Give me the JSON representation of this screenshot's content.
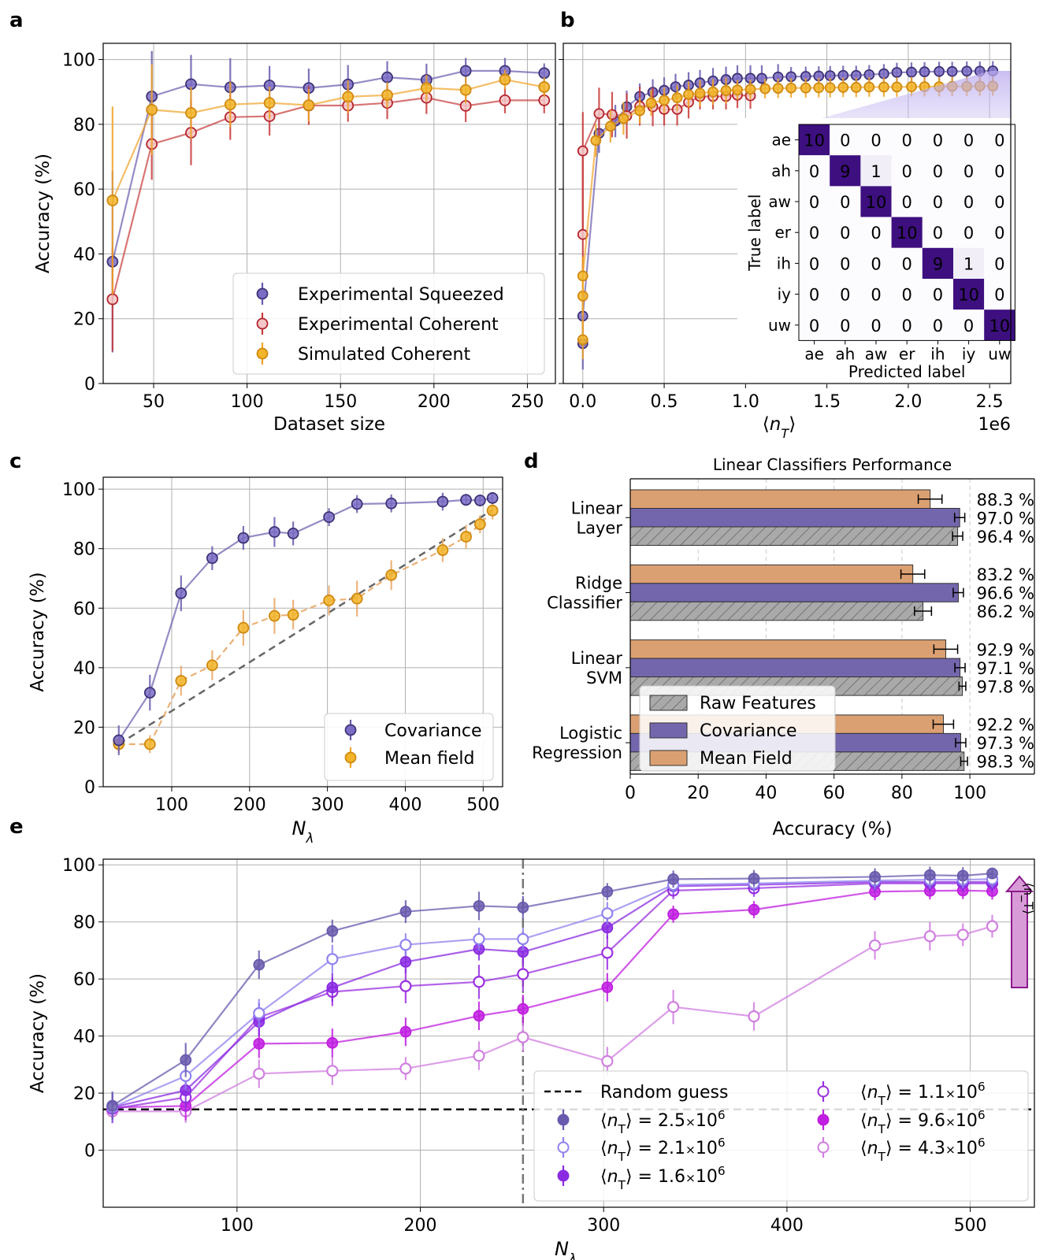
{
  "chart_data": [
    {
      "panel": "a",
      "type": "line",
      "title": "",
      "xlabel": "Dataset size",
      "ylabel": "Accuracy (%)",
      "xlim": [
        23,
        265
      ],
      "ylim": [
        0,
        105
      ],
      "xticks": [
        "50",
        "100",
        "150",
        "200",
        "250"
      ],
      "xtick_values": [
        50,
        100,
        150,
        200,
        250
      ],
      "yticks": [
        "0",
        "20",
        "40",
        "60",
        "80",
        "100"
      ],
      "ytick_values": [
        0,
        20,
        40,
        60,
        80,
        100
      ],
      "legend": [
        "Experimental Squeezed",
        "Experimental Coherent",
        "Simulated Coherent"
      ],
      "legend_position": "lower-right",
      "series": [
        {
          "name": "Experimental Squeezed",
          "color": "#6a5aad",
          "x": [
            28,
            49,
            70,
            91,
            112,
            133,
            154,
            175,
            196,
            217,
            238,
            259
          ],
          "values": [
            37.6,
            88.6,
            92.4,
            91.4,
            92.0,
            91.2,
            92.3,
            94.5,
            93.7,
            96.5,
            96.5,
            95.8
          ],
          "err": [
            28,
            14,
            9,
            9,
            6,
            6,
            6,
            5,
            5,
            4,
            4,
            3
          ]
        },
        {
          "name": "Experimental Coherent",
          "color": "#c83a3a",
          "x": [
            28,
            49,
            70,
            91,
            112,
            133,
            154,
            175,
            196,
            217,
            238,
            259
          ],
          "values": [
            26.0,
            73.9,
            77.4,
            82.2,
            82.5,
            85.8,
            85.8,
            86.6,
            88.2,
            85.7,
            87.4,
            87.4
          ],
          "err": [
            16,
            11,
            10,
            7,
            6,
            6,
            5,
            5,
            5,
            5,
            4,
            4
          ]
        },
        {
          "name": "Simulated Coherent",
          "color": "#f0a326",
          "x": [
            28,
            49,
            70,
            91,
            112,
            133,
            154,
            175,
            196,
            217,
            238,
            259
          ],
          "values": [
            56.5,
            84.5,
            83.5,
            86.1,
            86.6,
            85.9,
            88.5,
            89.0,
            91.2,
            90.6,
            93.8,
            91.5
          ],
          "err": [
            29,
            14,
            8,
            7,
            5,
            5,
            5,
            4,
            4,
            4,
            3,
            3
          ]
        }
      ]
    },
    {
      "panel": "b",
      "type": "line",
      "xlabel": "⟨n_T⟩",
      "xscale_label": "1e6",
      "xlim": [
        -0.12,
        2.63
      ],
      "ylim": [
        0,
        105
      ],
      "xticks": [
        "0.0",
        "0.5",
        "1.0",
        "1.5",
        "2.0",
        "2.5"
      ],
      "xtick_values": [
        0,
        0.5,
        1.0,
        1.5,
        2.0,
        2.5
      ],
      "series": [
        {
          "name": "Experimental Squeezed",
          "color": "#6a5aad",
          "x": [
            0.0,
            0.0,
            0.1,
            0.2,
            0.27,
            0.35,
            0.43,
            0.5,
            0.57,
            0.65,
            0.72,
            0.8,
            0.88,
            0.95,
            1.03,
            1.1,
            1.2,
            1.28,
            1.37,
            1.45,
            1.52,
            1.6,
            1.68,
            1.76,
            1.85,
            1.93,
            2.02,
            2.1,
            2.19,
            2.27,
            2.36,
            2.44,
            2.52
          ],
          "values": [
            12.3,
            20.8,
            77.2,
            81.0,
            85.4,
            88.6,
            89.9,
            90.5,
            91.6,
            92.1,
            92.8,
            93.4,
            93.8,
            94.2,
            94.2,
            94.2,
            94.6,
            94.7,
            94.8,
            94.9,
            95.0,
            95.1,
            95.1,
            95.3,
            95.6,
            96.0,
            96.1,
            96.2,
            96.3,
            96.3,
            96.4,
            96.4,
            96.5
          ],
          "err": [
            8,
            8,
            6,
            5,
            5,
            4,
            4,
            4,
            4,
            4,
            4,
            4,
            4,
            4,
            4,
            4,
            4,
            3,
            3,
            3,
            3,
            3,
            3,
            3,
            3,
            3,
            3,
            3,
            3,
            3,
            3,
            3,
            3
          ]
        },
        {
          "name": "Experimental Coherent",
          "color": "#c83a3a",
          "x": [
            0.0,
            0.0,
            0.1,
            0.18,
            0.27,
            0.35,
            0.43,
            0.5,
            0.58,
            0.65,
            0.72,
            0.8,
            0.88,
            0.95,
            1.03
          ],
          "values": [
            46.0,
            71.8,
            83.3,
            83.0,
            82.6,
            85.6,
            85.4,
            84.6,
            84.6,
            86.8,
            88.6,
            88.6,
            88.6,
            89.0,
            88.8
          ],
          "err": [
            14,
            12,
            8,
            7,
            7,
            6,
            6,
            5,
            5,
            5,
            4,
            4,
            4,
            4,
            4
          ]
        },
        {
          "name": "Simulated Coherent",
          "color": "#f0a326",
          "x": [
            0.0,
            0.0,
            0.0,
            0.08,
            0.17,
            0.25,
            0.35,
            0.42,
            0.5,
            0.58,
            0.65,
            0.72,
            0.8,
            0.88,
            0.95,
            1.03,
            1.12,
            1.2,
            1.28,
            1.37,
            1.45,
            1.52,
            1.6,
            1.68,
            1.76,
            1.85,
            1.93,
            2.02,
            2.1,
            2.19,
            2.27,
            2.36,
            2.44,
            2.52
          ],
          "values": [
            13.5,
            27.0,
            33.2,
            75.0,
            79.4,
            81.8,
            84.2,
            86.6,
            87.4,
            88.2,
            89.2,
            89.6,
            90.0,
            90.4,
            90.6,
            90.8,
            91.0,
            91.1,
            91.2,
            91.2,
            91.3,
            91.3,
            91.4,
            91.4,
            91.5,
            91.5,
            91.5,
            91.6,
            91.6,
            91.6,
            91.7,
            91.7,
            91.8,
            91.8
          ],
          "err": [
            6,
            6,
            6,
            5,
            5,
            5,
            4,
            4,
            4,
            4,
            4,
            4,
            4,
            4,
            3,
            3,
            3,
            3,
            3,
            3,
            3,
            3,
            3,
            3,
            3,
            3,
            3,
            3,
            3,
            3,
            3,
            3,
            3,
            3
          ]
        }
      ],
      "inset": {
        "type": "heatmap",
        "xlabel": "Predicted label",
        "ylabel": "True label",
        "labels": [
          "ae",
          "ah",
          "aw",
          "er",
          "ih",
          "iy",
          "uw"
        ],
        "matrix": [
          [
            10,
            0,
            0,
            0,
            0,
            0,
            0
          ],
          [
            0,
            9,
            1,
            0,
            0,
            0,
            0
          ],
          [
            0,
            0,
            10,
            0,
            0,
            0,
            0
          ],
          [
            0,
            0,
            0,
            10,
            0,
            0,
            0
          ],
          [
            0,
            0,
            0,
            0,
            9,
            1,
            0
          ],
          [
            0,
            0,
            0,
            0,
            0,
            10,
            0
          ],
          [
            0,
            0,
            0,
            0,
            0,
            0,
            10
          ]
        ]
      }
    },
    {
      "panel": "c",
      "type": "line",
      "xlabel": "N_λ",
      "ylabel": "Accuracy (%)",
      "xlim": [
        12,
        525
      ],
      "ylim": [
        0,
        104
      ],
      "xticks": [
        "100",
        "200",
        "300",
        "400",
        "500"
      ],
      "xtick_values": [
        100,
        200,
        300,
        400,
        500
      ],
      "yticks": [
        "0",
        "20",
        "40",
        "60",
        "80",
        "100"
      ],
      "ytick_values": [
        0,
        20,
        40,
        60,
        80,
        100
      ],
      "legend": [
        "Covariance",
        "Mean field"
      ],
      "legend_position": "lower-right",
      "baseline": {
        "x": [
          32,
          512
        ],
        "values": [
          14.3,
          93
        ]
      },
      "series": [
        {
          "name": "Covariance",
          "color": "#6a5aad",
          "dashed": false,
          "x": [
            32,
            72,
            112,
            152,
            192,
            232,
            256,
            302,
            338,
            382,
            448,
            478,
            496,
            512
          ],
          "values": [
            15.6,
            31.6,
            65.0,
            76.8,
            83.6,
            85.6,
            85.1,
            90.6,
            95.0,
            95.2,
            95.8,
            96.4,
            96.2,
            97.0
          ],
          "err": [
            5,
            6,
            6,
            4,
            4,
            5,
            4,
            3,
            3,
            3,
            3,
            2,
            2,
            2
          ]
        },
        {
          "name": "Mean field",
          "color": "#f0a326",
          "dashed": true,
          "x": [
            32,
            72,
            112,
            152,
            192,
            232,
            256,
            302,
            338,
            382,
            448,
            478,
            496,
            512
          ],
          "values": [
            14.3,
            14.3,
            35.6,
            40.8,
            53.4,
            57.4,
            57.8,
            62.6,
            63.2,
            71.1,
            79.5,
            84.0,
            88.2,
            92.8
          ],
          "err": [
            3,
            3,
            5,
            5,
            6,
            6,
            5,
            5,
            6,
            5,
            4,
            4,
            3,
            3
          ]
        }
      ]
    },
    {
      "panel": "d",
      "type": "bar",
      "orientation": "horizontal",
      "title": "Linear Classifiers Performance",
      "xlabel": "Accuracy (%)",
      "xlim": [
        0,
        119
      ],
      "xticks": [
        "0",
        "20",
        "40",
        "60",
        "80",
        "100"
      ],
      "xtick_values": [
        0,
        20,
        40,
        60,
        80,
        100
      ],
      "categories": [
        [
          "Linear",
          "Layer"
        ],
        [
          "Ridge",
          "Classifier"
        ],
        [
          "Linear",
          "SVM"
        ],
        [
          "Logistic",
          "Regression"
        ]
      ],
      "legend": [
        "Raw Features",
        "Covariance",
        "Mean Field"
      ],
      "legend_position": "lower-left",
      "series": [
        {
          "name": "Mean Field",
          "color": "#dba072",
          "values": [
            88.3,
            83.2,
            92.9,
            92.2
          ],
          "err": [
            3.5,
            3.5,
            3.5,
            3
          ],
          "labels": [
            "88.3 %",
            "83.2 %",
            "92.9 %",
            "92.2 %"
          ]
        },
        {
          "name": "Covariance",
          "color": "#7466ad",
          "values": [
            97.0,
            96.6,
            97.1,
            97.3
          ],
          "err": [
            1.5,
            1.5,
            1.5,
            1.5
          ],
          "labels": [
            "97.0 %",
            "96.6 %",
            "97.1 %",
            "97.3 %"
          ]
        },
        {
          "name": "Raw Features",
          "color": "#a4a4a4",
          "values": [
            96.4,
            86.2,
            97.8,
            98.3
          ],
          "err": [
            1.5,
            2.5,
            1,
            1
          ],
          "labels": [
            "96.4 %",
            "86.2 %",
            "97.8 %",
            "98.3 %"
          ]
        }
      ]
    },
    {
      "panel": "e",
      "type": "line",
      "xlabel": "N_λ",
      "ylabel": "Accuracy (%)",
      "xlim": [
        27,
        535
      ],
      "ylim": [
        -20,
        102
      ],
      "xticks": [
        "100",
        "200",
        "300",
        "400",
        "500"
      ],
      "xtick_values": [
        100,
        200,
        300,
        400,
        500
      ],
      "yticks": [
        "0",
        "20",
        "40",
        "60",
        "80",
        "100"
      ],
      "ytick_values": [
        0,
        20,
        40,
        60,
        80,
        100
      ],
      "random_guess": 14.3,
      "vline_x": 256,
      "arrow_label": "⟨n_T⟩",
      "legend_position": "lower-right",
      "legend": [
        "Random guess",
        "⟨n_T⟩ = 2.5×10^6",
        "⟨n_T⟩ = 2.1×10^6",
        "⟨n_T⟩ = 1.6×10^6",
        "⟨n_T⟩ = 1.1×10^6",
        "⟨n_T⟩ = 9.6×10^6",
        "⟨n_T⟩ = 4.3×10^6"
      ],
      "x": [
        32,
        72,
        112,
        152,
        192,
        232,
        256,
        302,
        338,
        382,
        448,
        478,
        496,
        512
      ],
      "series": [
        {
          "name": "⟨nT⟩ = 2.5×10^6",
          "color": "#6a5aad",
          "style": "filled",
          "values": [
            15.6,
            31.6,
            65.0,
            76.8,
            83.6,
            85.6,
            85.1,
            90.6,
            95.0,
            95.2,
            95.8,
            96.4,
            96.2,
            97.0
          ],
          "err": [
            5,
            6,
            5,
            4,
            4,
            5,
            4,
            3,
            3,
            3,
            3,
            3,
            3,
            2
          ]
        },
        {
          "name": "⟨nT⟩ = 2.1×10^6",
          "color": "#8f82ee",
          "style": "hollow",
          "values": [
            15.0,
            26.0,
            48.0,
            67.0,
            72.0,
            74.0,
            74.0,
            83.0,
            93.0,
            93.5,
            94.5,
            94.8,
            94.8,
            95.0
          ],
          "err": [
            5,
            5,
            5,
            5,
            4,
            4,
            4,
            4,
            3,
            3,
            3,
            3,
            3,
            3
          ]
        },
        {
          "name": "⟨nT⟩ = 1.6×10^6",
          "color": "#8a2be2",
          "style": "filled",
          "values": [
            15.0,
            21.0,
            45.0,
            57.0,
            66.0,
            70.5,
            69.5,
            78.0,
            92.5,
            93.0,
            94.0,
            94.0,
            94.0,
            94.0
          ],
          "err": [
            5,
            5,
            5,
            5,
            4,
            4,
            4,
            4,
            3,
            3,
            3,
            3,
            3,
            3
          ]
        },
        {
          "name": "⟨nT⟩ = 1.1×10^6",
          "color": "#9a2fe0",
          "style": "hollow",
          "values": [
            14.5,
            18.5,
            46.6,
            55.5,
            57.5,
            59.0,
            61.7,
            69.2,
            91.0,
            91.8,
            93.5,
            93.5,
            93.5,
            93.5
          ],
          "err": [
            5,
            5,
            5,
            5,
            6,
            6,
            6,
            6,
            3,
            3,
            3,
            3,
            3,
            3
          ]
        },
        {
          "name": "⟨nT⟩ = 9.6×10^6",
          "color": "#c01ee0",
          "style": "filled",
          "values": [
            15.0,
            15.5,
            37.3,
            37.6,
            41.5,
            47.1,
            49.5,
            57.1,
            82.7,
            84.3,
            90.6,
            90.9,
            91.0,
            90.8
          ],
          "err": [
            5,
            5,
            5,
            5,
            5,
            5,
            5,
            5,
            3,
            3,
            3,
            3,
            3,
            3
          ]
        },
        {
          "name": "⟨nT⟩ = 4.3×10^6",
          "color": "#d07ee0",
          "style": "hollow",
          "values": [
            13.6,
            13.6,
            26.8,
            27.8,
            28.6,
            33.1,
            39.6,
            31.2,
            50.2,
            46.9,
            71.8,
            75.0,
            75.5,
            78.5
          ],
          "err": [
            4,
            4,
            5,
            5,
            4,
            5,
            5,
            5,
            6,
            5,
            5,
            5,
            4,
            4
          ]
        }
      ]
    }
  ]
}
